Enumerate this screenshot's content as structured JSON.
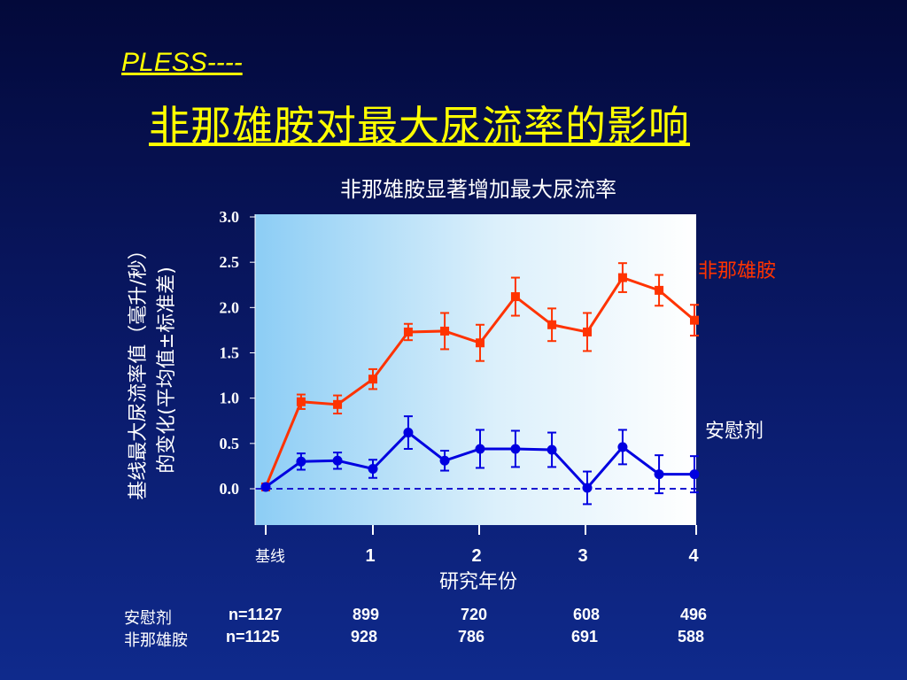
{
  "slide": {
    "title_en": "PLESS----",
    "title_cn": "非那雄胺对最大尿流率的影响"
  },
  "colors": {
    "background": "#0a1a6a",
    "title": "#ffff00",
    "finasteride": "#ff3300",
    "placebo": "#0000e0",
    "text": "#ffffff"
  },
  "chart_data": {
    "type": "line",
    "title": "非那雄胺显著增加最大尿流率",
    "ylabel_line1": "基线最大尿流率值（毫升/秒）",
    "ylabel_line2": "的变化(平均值±标准差)",
    "xlabel": "研究年份",
    "ylim": [
      0,
      3.0
    ],
    "yticks": [
      "0.0",
      "0.5",
      "1.0",
      "1.5",
      "2.0",
      "2.5",
      "3.0"
    ],
    "xlim": [
      0,
      4
    ],
    "xticks": [
      {
        "x": 0,
        "label": "基线"
      },
      {
        "x": 1,
        "label": "1"
      },
      {
        "x": 2,
        "label": "2"
      },
      {
        "x": 3,
        "label": "3"
      },
      {
        "x": 4,
        "label": "4"
      }
    ],
    "grid": false,
    "series": [
      {
        "name": "非那雄胺",
        "marker": "square",
        "x": [
          0,
          0.33,
          0.67,
          1.0,
          1.33,
          1.67,
          2.0,
          2.33,
          2.67,
          3.0,
          3.33,
          3.67,
          4.0
        ],
        "values": [
          0.02,
          0.96,
          0.93,
          1.21,
          1.73,
          1.74,
          1.61,
          2.12,
          1.81,
          1.73,
          2.33,
          2.19,
          1.86
        ],
        "errors": [
          0.0,
          0.08,
          0.1,
          0.11,
          0.09,
          0.2,
          0.2,
          0.21,
          0.18,
          0.21,
          0.16,
          0.17,
          0.17
        ]
      },
      {
        "name": "安慰剂",
        "marker": "circle",
        "x": [
          0,
          0.33,
          0.67,
          1.0,
          1.33,
          1.67,
          2.0,
          2.33,
          2.67,
          3.0,
          3.33,
          3.67,
          4.0
        ],
        "values": [
          0.02,
          0.3,
          0.31,
          0.22,
          0.62,
          0.31,
          0.44,
          0.44,
          0.43,
          0.01,
          0.46,
          0.16,
          0.16
        ],
        "errors": [
          0.0,
          0.09,
          0.09,
          0.1,
          0.18,
          0.11,
          0.21,
          0.2,
          0.19,
          0.18,
          0.19,
          0.21,
          0.2
        ]
      }
    ]
  },
  "counts": {
    "placebo": {
      "label": "安慰剂",
      "values": [
        "n=1127",
        "899",
        "720",
        "608",
        "496"
      ]
    },
    "finasteride": {
      "label": "非那雄胺",
      "values": [
        "n=1125",
        "928",
        "786",
        "691",
        "588"
      ]
    }
  }
}
